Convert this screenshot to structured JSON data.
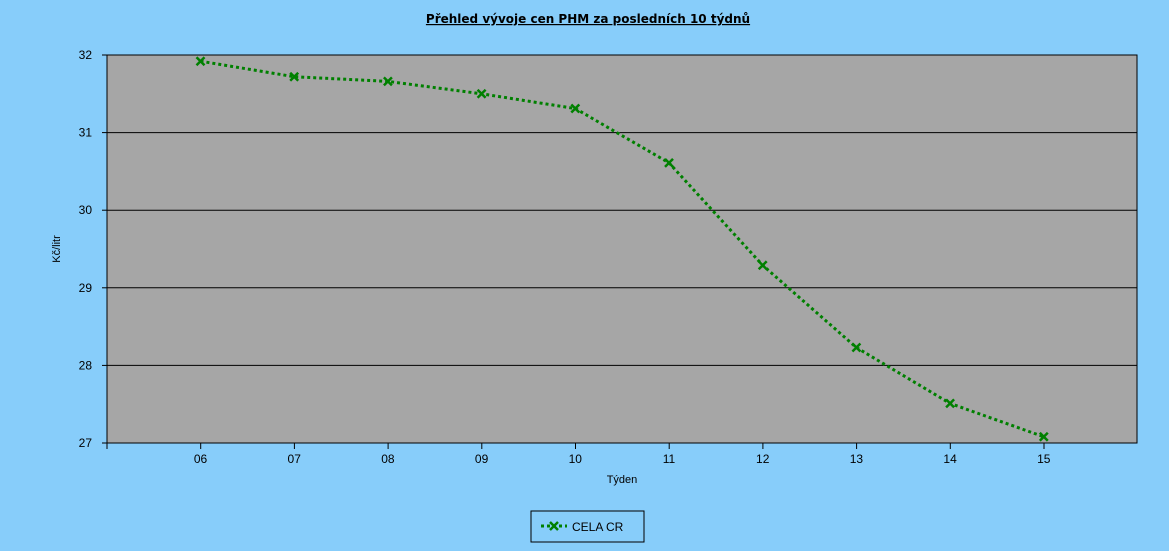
{
  "chart_data": {
    "type": "line",
    "title": "Přehled vývoje cen PHM za posledních 10 týdnů",
    "xlabel": "Týden",
    "ylabel": "Kč/litr",
    "categories": [
      "06",
      "07",
      "08",
      "09",
      "10",
      "11",
      "12",
      "13",
      "14",
      "15"
    ],
    "series": [
      {
        "name": "CELA CR",
        "values": [
          31.92,
          31.72,
          31.66,
          31.5,
          31.31,
          30.61,
          29.29,
          28.23,
          27.51,
          27.08
        ],
        "color": "#008000",
        "line_style": "dotted",
        "marker": "x"
      }
    ],
    "ylim": [
      27,
      32
    ],
    "yticks": [
      27,
      28,
      29,
      30,
      31,
      32
    ],
    "grid": true,
    "legend": "bottom-center",
    "colors": {
      "page_background": "#87CDFA",
      "plot_background": "#A6A6A6",
      "gridline": "#000000"
    }
  }
}
